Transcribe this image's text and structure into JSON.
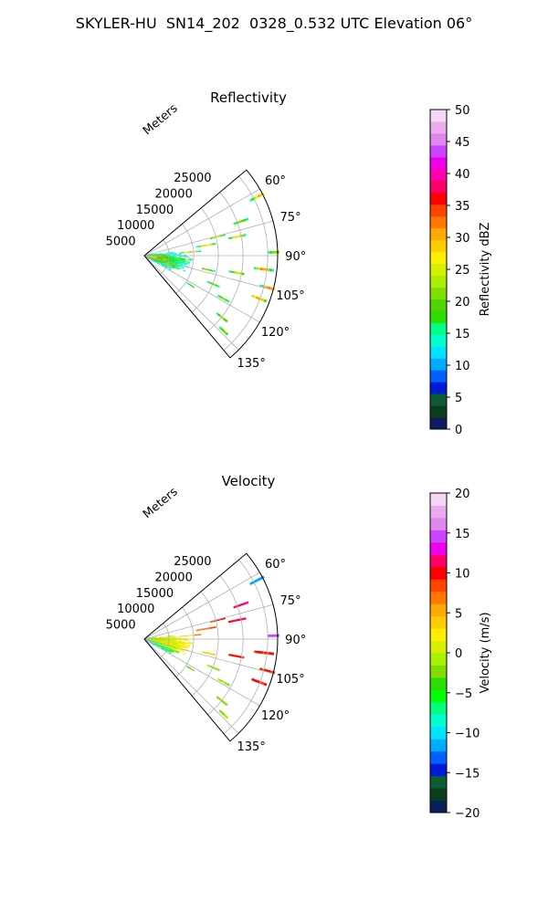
{
  "figure": {
    "title": "SKYLER-HU  SN14_202  0328_0.532 UTC Elevation 06°"
  },
  "chart_data": [
    {
      "type": "heatmap",
      "subtype": "polar-sector",
      "title": "Reflectivity",
      "radial_label": "Meters",
      "azimuth_range_deg": [
        50,
        140
      ],
      "range_m": [
        0,
        27000
      ],
      "radial_ticks": [
        5000,
        10000,
        15000,
        20000,
        25000
      ],
      "radial_tick_labels": [
        "5000",
        "10000",
        "15000",
        "20000",
        "25000"
      ],
      "azimuth_ticks": [
        60,
        75,
        90,
        105,
        120,
        135
      ],
      "azimuth_tick_labels": [
        "60°",
        "75°",
        "90°",
        "105°",
        "120°",
        "135°"
      ],
      "grid": true,
      "colorbar": {
        "label": "Reflectivity dBZ",
        "vmin": 0,
        "vmax": 50,
        "ticks": [
          0,
          5,
          10,
          15,
          20,
          25,
          30,
          35,
          40,
          45,
          50
        ],
        "tick_labels": [
          "0",
          "5",
          "10",
          "15",
          "20",
          "25",
          "30",
          "35",
          "40",
          "45",
          "50"
        ],
        "colors": [
          "#0a1f5c",
          "#0b3d1f",
          "#0f5c34",
          "#001bd6",
          "#0060ff",
          "#00aaff",
          "#00e0ff",
          "#00ffcc",
          "#00ff80",
          "#2ddc00",
          "#52d400",
          "#7fe000",
          "#aaee00",
          "#d4f000",
          "#ffee00",
          "#ffcc00",
          "#ffaa00",
          "#ff7700",
          "#ff4400",
          "#ff0000",
          "#ff0066",
          "#ff00aa",
          "#ee00ee",
          "#cc44ff",
          "#dd88ee",
          "#eeaaee",
          "#f6d6f6"
        ]
      }
    },
    {
      "type": "heatmap",
      "subtype": "polar-sector",
      "title": "Velocity",
      "radial_label": "Meters",
      "azimuth_range_deg": [
        50,
        140
      ],
      "range_m": [
        0,
        27000
      ],
      "radial_ticks": [
        5000,
        10000,
        15000,
        20000,
        25000
      ],
      "radial_tick_labels": [
        "5000",
        "10000",
        "15000",
        "20000",
        "25000"
      ],
      "azimuth_ticks": [
        60,
        75,
        90,
        105,
        120,
        135
      ],
      "azimuth_tick_labels": [
        "60°",
        "75°",
        "90°",
        "105°",
        "120°",
        "135°"
      ],
      "grid": true,
      "colorbar": {
        "label": "Velocity (m/s)",
        "vmin": -20,
        "vmax": 20,
        "ticks": [
          -20,
          -15,
          -10,
          -5,
          0,
          5,
          10,
          15,
          20
        ],
        "tick_labels": [
          "−20",
          "−15",
          "−10",
          "−5",
          "0",
          "5",
          "10",
          "15",
          "20"
        ],
        "colors": [
          "#0a1f5c",
          "#0b3d1f",
          "#0f5c34",
          "#001bd6",
          "#0060ff",
          "#00aaff",
          "#00e0ff",
          "#00ffcc",
          "#00ff80",
          "#00ff00",
          "#2ddc00",
          "#7fe000",
          "#aaee00",
          "#d4f000",
          "#ffee00",
          "#ffcc00",
          "#ffaa00",
          "#ff7700",
          "#ff4400",
          "#ff0000",
          "#ff0066",
          "#ee00ee",
          "#cc44ff",
          "#dd88ee",
          "#eeaaee",
          "#f6d6f6"
        ]
      }
    }
  ]
}
